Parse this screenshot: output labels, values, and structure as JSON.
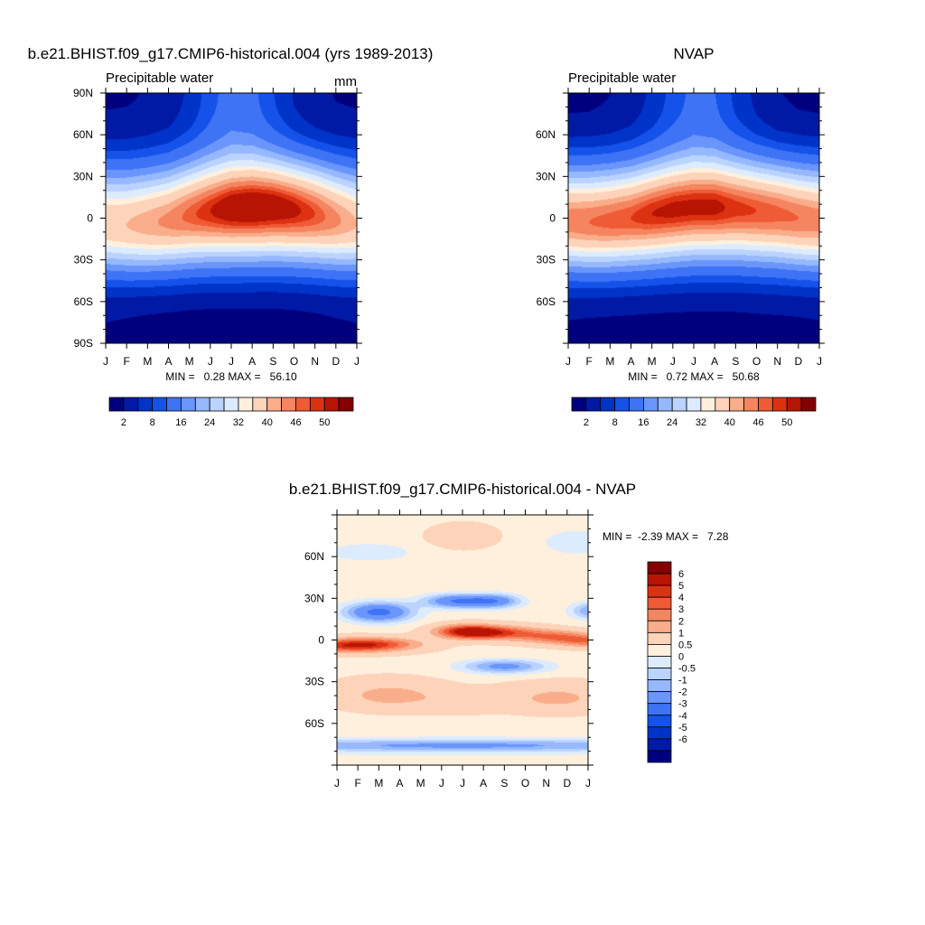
{
  "chart_data": [
    {
      "type": "heatmap",
      "title": "b.e21.BHIST.f09_g17.CMIP6-historical.004 (yrs 1989-2013)",
      "subtitle_left": "Precipitable water",
      "subtitle_right": "mm",
      "x_tick_labels": [
        "J",
        "F",
        "M",
        "A",
        "M",
        "J",
        "J",
        "A",
        "S",
        "O",
        "N",
        "D",
        "J"
      ],
      "y_tick_labels": [
        "90N",
        "60N",
        "30N",
        "0",
        "30S",
        "60S",
        "90S"
      ],
      "y_tick_values": [
        90,
        60,
        30,
        0,
        -30,
        -60,
        -90
      ],
      "ylim": [
        -90,
        90
      ],
      "stats_text": "MIN =   0.28 MAX =   56.10",
      "min": 0.28,
      "max": 56.1,
      "equator_peak": [
        39,
        40,
        42,
        44,
        47,
        50,
        53,
        54,
        53,
        51,
        48,
        44,
        40
      ],
      "peak_lat": [
        -4,
        -5,
        -4,
        -2,
        2,
        5,
        7,
        8,
        8,
        6,
        3,
        -1,
        -4
      ],
      "north_pole": [
        1.5,
        1.6,
        2.0,
        3.0,
        5.5,
        9.5,
        13,
        12,
        8,
        4.5,
        2.5,
        1.7,
        1.5
      ],
      "south_pole": [
        1.5,
        1.2,
        0.9,
        0.7,
        0.5,
        0.4,
        0.35,
        0.35,
        0.4,
        0.5,
        0.8,
        1.2,
        1.5
      ],
      "contour_levels": [
        2,
        5,
        8,
        11,
        16,
        20,
        24,
        28,
        32,
        35,
        40,
        43,
        46,
        48,
        50
      ],
      "colorbar_labels": [
        "2",
        "8",
        "16",
        "24",
        "32",
        "40",
        "46",
        "50"
      ]
    },
    {
      "type": "heatmap",
      "title": "NVAP",
      "subtitle_left": "Precipitable water",
      "x_tick_labels": [
        "J",
        "F",
        "M",
        "A",
        "M",
        "J",
        "J",
        "A",
        "S",
        "O",
        "N",
        "D",
        "J"
      ],
      "y_tick_labels": [
        "60N",
        "30N",
        "0",
        "30S",
        "60S"
      ],
      "y_tick_values": [
        60,
        30,
        0,
        -30,
        -60
      ],
      "ylim": [
        -90,
        90
      ],
      "stats_text": "MIN =   0.72 MAX =   50.68",
      "min": 0.72,
      "max": 50.68,
      "equator_peak": [
        45,
        46,
        47,
        48,
        50,
        51,
        51,
        51,
        49,
        48,
        47,
        46,
        45
      ],
      "peak_lat": [
        -2,
        -3,
        -2,
        0,
        3,
        6,
        8,
        8,
        7,
        5,
        3,
        0,
        -2
      ],
      "north_pole": [
        1.2,
        1.3,
        1.8,
        3.0,
        5.5,
        9.0,
        12,
        11,
        7,
        4.0,
        2.0,
        1.4,
        1.2
      ],
      "south_pole": [
        1.3,
        1.1,
        1.0,
        0.9,
        0.8,
        0.75,
        0.75,
        0.75,
        0.8,
        0.9,
        1.0,
        1.1,
        1.3
      ],
      "contour_levels": [
        2,
        5,
        8,
        11,
        16,
        20,
        24,
        28,
        32,
        35,
        40,
        43,
        46,
        48,
        50
      ],
      "colorbar_labels": [
        "2",
        "8",
        "16",
        "24",
        "32",
        "40",
        "46",
        "50"
      ]
    },
    {
      "type": "heatmap",
      "title": "b.e21.BHIST.f09_g17.CMIP6-historical.004 - NVAP",
      "x_tick_labels": [
        "J",
        "F",
        "M",
        "A",
        "M",
        "J",
        "J",
        "A",
        "S",
        "O",
        "N",
        "D",
        "J"
      ],
      "y_tick_labels": [
        "60N",
        "30N",
        "0",
        "30S",
        "60S"
      ],
      "y_tick_values": [
        60,
        30,
        0,
        -30,
        -60
      ],
      "ylim": [
        -90,
        90
      ],
      "stats_text": "MIN =  -2.39 MAX =   7.28",
      "min": -2.39,
      "max": 7.28,
      "contour_levels": [
        -6,
        -5,
        -4,
        -3,
        -2,
        -1,
        -0.5,
        0,
        0.5,
        1,
        2,
        3,
        4,
        5,
        6
      ],
      "colorbar_labels": [
        "6",
        "5",
        "4",
        "3",
        "2",
        "1",
        "0.5",
        "0",
        "-0.5",
        "-1",
        "-2",
        "-3",
        "-4",
        "-5",
        "-6"
      ]
    }
  ],
  "colors": {
    "palette": [
      "#00007f",
      "#001aa6",
      "#0034c9",
      "#1452ea",
      "#3e73f5",
      "#6a96fb",
      "#95b8fe",
      "#bbd3ff",
      "#ddebff",
      "#fff0de",
      "#fdd3b9",
      "#f9ad8b",
      "#f58560",
      "#ef5b35",
      "#dc3212",
      "#b81404",
      "#850000"
    ]
  }
}
